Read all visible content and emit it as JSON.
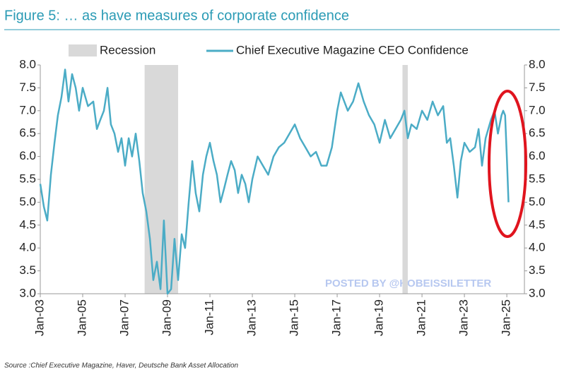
{
  "chart_data": {
    "type": "line",
    "title": "Figure 5: … as have measures of corporate confidence",
    "source": "Source :Chief Executive Magazine, Haver, Deutsche Bank Asset Allocation",
    "watermark": "POSTED BY @KOBEISSILETTER",
    "recessions": {
      "name": "Recession",
      "color": "#d9d9d9",
      "periods": [
        [
          2007.92,
          2009.5
        ],
        [
          2020.08,
          2020.33
        ]
      ]
    },
    "x": [
      2003.0,
      2003.17,
      2003.33,
      2003.5,
      2003.67,
      2003.83,
      2004.0,
      2004.17,
      2004.33,
      2004.5,
      2004.67,
      2004.83,
      2005.0,
      2005.25,
      2005.5,
      2005.67,
      2005.83,
      2006.0,
      2006.17,
      2006.33,
      2006.5,
      2006.67,
      2006.83,
      2007.0,
      2007.17,
      2007.33,
      2007.5,
      2007.67,
      2007.83,
      2008.0,
      2008.17,
      2008.33,
      2008.5,
      2008.67,
      2008.83,
      2009.0,
      2009.17,
      2009.33,
      2009.5,
      2009.67,
      2009.83,
      2010.0,
      2010.17,
      2010.33,
      2010.5,
      2010.67,
      2010.83,
      2011.0,
      2011.17,
      2011.33,
      2011.5,
      2011.67,
      2011.83,
      2012.0,
      2012.17,
      2012.33,
      2012.5,
      2012.67,
      2012.83,
      2013.0,
      2013.25,
      2013.5,
      2013.75,
      2014.0,
      2014.25,
      2014.5,
      2014.75,
      2015.0,
      2015.25,
      2015.5,
      2015.75,
      2016.0,
      2016.25,
      2016.5,
      2016.75,
      2017.0,
      2017.17,
      2017.5,
      2017.75,
      2018.0,
      2018.25,
      2018.5,
      2018.75,
      2019.0,
      2019.25,
      2019.5,
      2019.75,
      2020.0,
      2020.17,
      2020.33,
      2020.5,
      2020.75,
      2021.0,
      2021.25,
      2021.5,
      2021.75,
      2022.0,
      2022.17,
      2022.33,
      2022.5,
      2022.67,
      2022.83,
      2023.0,
      2023.25,
      2023.5,
      2023.67,
      2023.83,
      2024.0,
      2024.25,
      2024.42,
      2024.58,
      2024.75,
      2024.83,
      2024.92,
      2025.0,
      2025.08
    ],
    "series": [
      {
        "name": "Chief Executive Magazine CEO Confidence",
        "color": "#4bacc6",
        "values": [
          5.4,
          4.9,
          4.6,
          5.6,
          6.3,
          6.9,
          7.3,
          7.9,
          7.2,
          7.8,
          7.5,
          7.0,
          7.5,
          7.1,
          7.2,
          6.6,
          6.8,
          7.0,
          7.5,
          6.7,
          6.5,
          6.1,
          6.4,
          5.8,
          6.4,
          6.0,
          6.5,
          5.9,
          5.2,
          4.8,
          4.2,
          3.3,
          3.7,
          3.1,
          4.6,
          3.0,
          3.1,
          4.2,
          3.3,
          4.3,
          4.0,
          5.0,
          5.9,
          5.2,
          4.8,
          5.6,
          6.0,
          6.3,
          5.9,
          5.6,
          5.0,
          5.3,
          5.6,
          5.9,
          5.7,
          5.2,
          5.6,
          5.4,
          5.0,
          5.5,
          6.0,
          5.8,
          5.6,
          6.0,
          6.2,
          6.3,
          6.5,
          6.7,
          6.4,
          6.2,
          6.0,
          6.1,
          5.8,
          5.8,
          6.2,
          7.0,
          7.4,
          7.0,
          7.2,
          7.6,
          7.2,
          6.9,
          6.7,
          6.3,
          6.8,
          6.4,
          6.6,
          6.8,
          7.0,
          6.4,
          6.7,
          6.6,
          7.0,
          6.8,
          7.2,
          6.9,
          7.1,
          6.3,
          6.4,
          5.8,
          5.1,
          5.9,
          6.3,
          6.1,
          6.2,
          6.6,
          5.8,
          6.4,
          6.8,
          7.0,
          6.5,
          6.9,
          7.0,
          6.9,
          6.0,
          5.0
        ]
      }
    ],
    "xlim": [
      2003,
      2025.83
    ],
    "xticks": [
      {
        "value": 2003,
        "label": "Jan-03"
      },
      {
        "value": 2005,
        "label": "Jan-05"
      },
      {
        "value": 2007,
        "label": "Jan-07"
      },
      {
        "value": 2009,
        "label": "Jan-09"
      },
      {
        "value": 2011,
        "label": "Jan-11"
      },
      {
        "value": 2013,
        "label": "Jan-13"
      },
      {
        "value": 2015,
        "label": "Jan-15"
      },
      {
        "value": 2017,
        "label": "Jan-17"
      },
      {
        "value": 2019,
        "label": "Jan-19"
      },
      {
        "value": 2021,
        "label": "Jan-21"
      },
      {
        "value": 2023,
        "label": "Jan-23"
      },
      {
        "value": 2025,
        "label": "Jan-25"
      }
    ],
    "ylim": [
      3.0,
      8.0
    ],
    "yticks": [
      {
        "value": 8,
        "label": "8.0"
      },
      {
        "value": 7.5,
        "label": "7.5"
      },
      {
        "value": 7,
        "label": "7.0"
      },
      {
        "value": 6.5,
        "label": "6.5"
      },
      {
        "value": 6,
        "label": "6.0"
      },
      {
        "value": 5.5,
        "label": "5.5"
      },
      {
        "value": 5,
        "label": "5.0"
      },
      {
        "value": 4.5,
        "label": "4.5"
      },
      {
        "value": 4,
        "label": "4.0"
      },
      {
        "value": 3.5,
        "label": "3.5"
      },
      {
        "value": 3,
        "label": "3.0"
      }
    ],
    "grid": false
  }
}
